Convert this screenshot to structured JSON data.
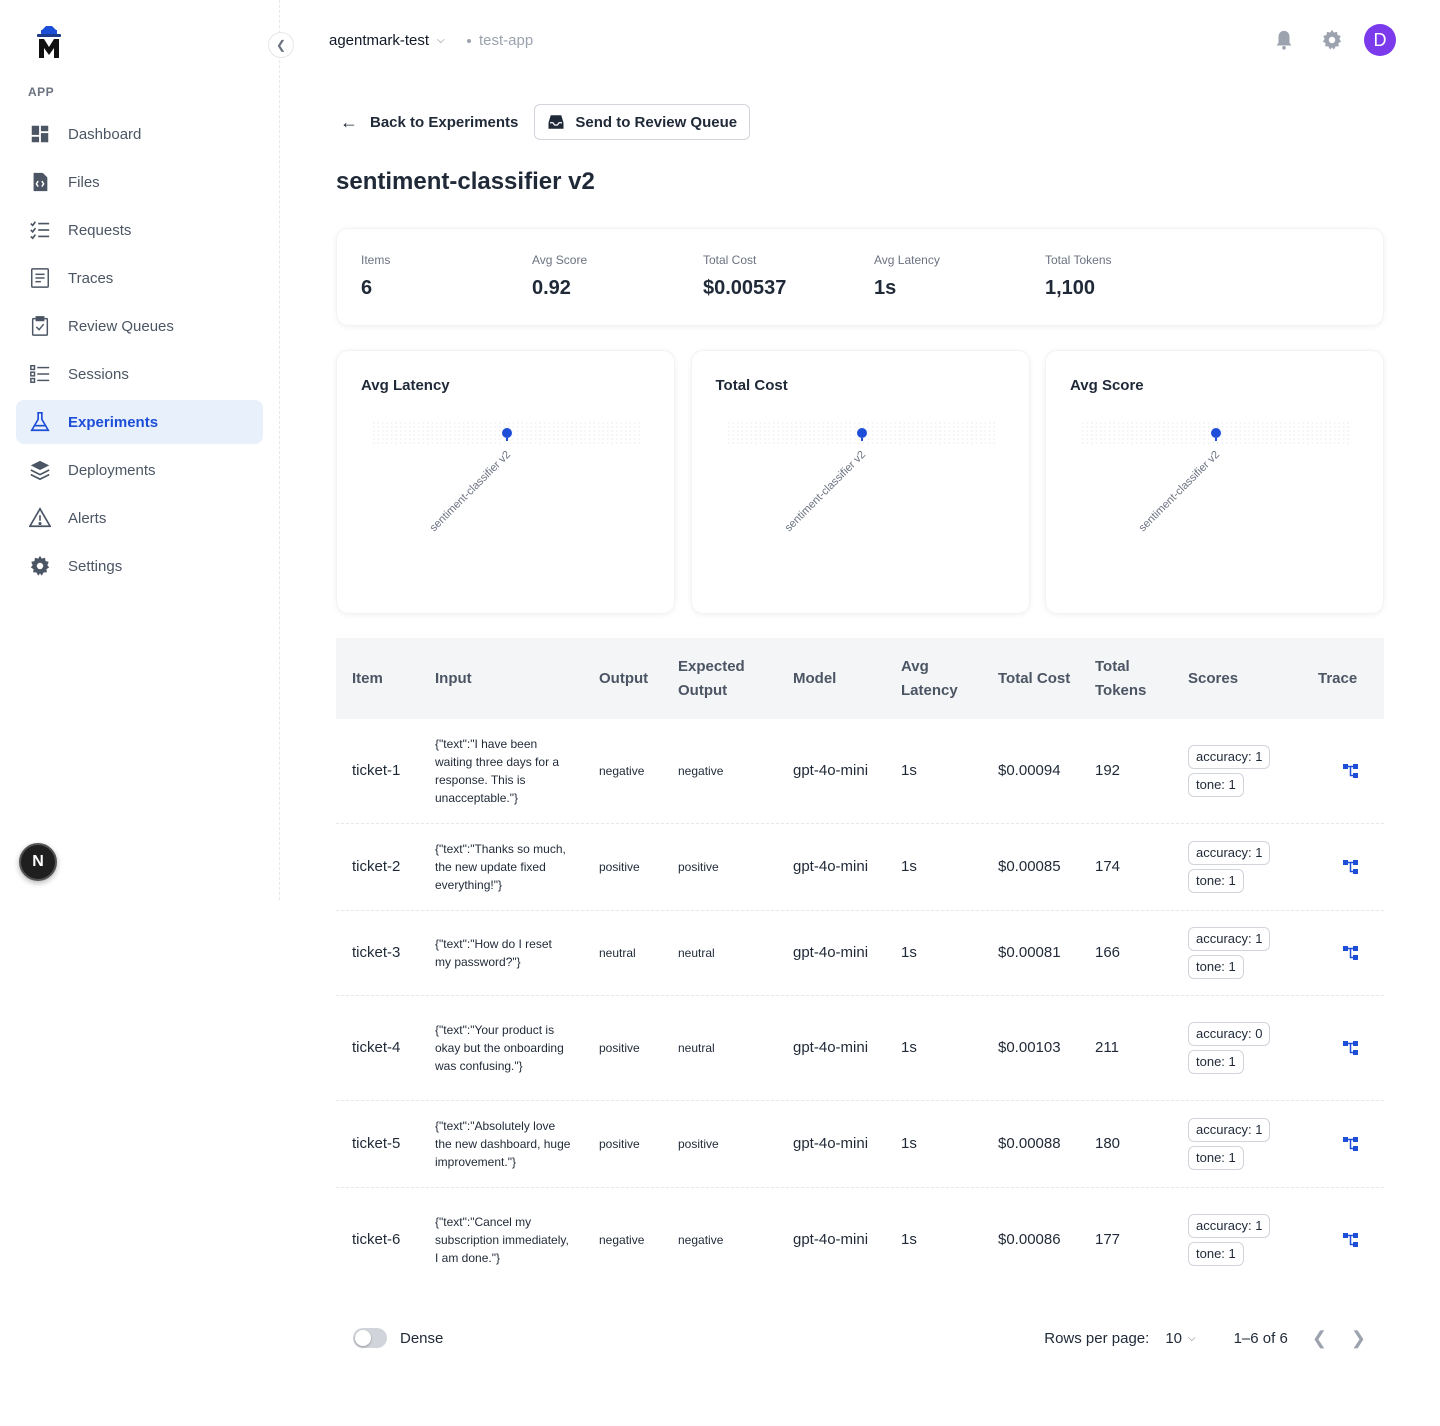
{
  "app": {
    "section_label": "APP",
    "org_name": "agentmark-test",
    "app_name": "test-app",
    "user_initial": "D",
    "avatar_color": "#7c3aed",
    "accent_color": "#1d4ed8"
  },
  "sidebar": {
    "items": [
      {
        "label": "Dashboard",
        "icon": "dashboard-icon",
        "active": false
      },
      {
        "label": "Files",
        "icon": "file-code-icon",
        "active": false
      },
      {
        "label": "Requests",
        "icon": "checklist-icon",
        "active": false
      },
      {
        "label": "Traces",
        "icon": "document-list-icon",
        "active": false
      },
      {
        "label": "Review Queues",
        "icon": "clipboard-check-icon",
        "active": false
      },
      {
        "label": "Sessions",
        "icon": "list-icon",
        "active": false
      },
      {
        "label": "Experiments",
        "icon": "flask-icon",
        "active": true
      },
      {
        "label": "Deployments",
        "icon": "layers-icon",
        "active": false
      },
      {
        "label": "Alerts",
        "icon": "warning-icon",
        "active": false
      },
      {
        "label": "Settings",
        "icon": "gear-icon",
        "active": false
      }
    ],
    "next_badge": "N"
  },
  "actions": {
    "back_label": "Back to Experiments",
    "review_label": "Send to Review Queue"
  },
  "page": {
    "title": "sentiment-classifier v2"
  },
  "stats": [
    {
      "label": "Items",
      "value": "6"
    },
    {
      "label": "Avg Score",
      "value": "0.92"
    },
    {
      "label": "Total Cost",
      "value": "$0.00537"
    },
    {
      "label": "Avg Latency",
      "value": "1s"
    },
    {
      "label": "Total Tokens",
      "value": "1,100"
    }
  ],
  "chart_data": [
    {
      "type": "scatter",
      "title": "Avg Latency",
      "categories": [
        "sentiment-classifier v2"
      ],
      "values": [
        1
      ],
      "grid": true
    },
    {
      "type": "scatter",
      "title": "Total Cost",
      "categories": [
        "sentiment-classifier v2"
      ],
      "values": [
        0.00537
      ],
      "grid": true
    },
    {
      "type": "scatter",
      "title": "Avg Score",
      "categories": [
        "sentiment-classifier v2"
      ],
      "values": [
        0.92
      ],
      "grid": true
    }
  ],
  "table": {
    "headers": [
      "Item",
      "Input",
      "Output",
      "Expected Output",
      "Model",
      "Avg Latency",
      "Total Cost",
      "Total Tokens",
      "Scores",
      "Trace"
    ],
    "rows": [
      {
        "item": "ticket-1",
        "input": "{\"text\":\"I have been waiting three days for a response. This is unacceptable.\"}",
        "output": "negative",
        "expected": "negative",
        "model": "gpt-4o-mini",
        "latency": "1s",
        "cost": "$0.00094",
        "tokens": "192",
        "score1": "accuracy: 1",
        "score2": "tone: 1"
      },
      {
        "item": "ticket-2",
        "input": "{\"text\":\"Thanks so much, the new update fixed everything!\"}",
        "output": "positive",
        "expected": "positive",
        "model": "gpt-4o-mini",
        "latency": "1s",
        "cost": "$0.00085",
        "tokens": "174",
        "score1": "accuracy: 1",
        "score2": "tone: 1"
      },
      {
        "item": "ticket-3",
        "input": "{\"text\":\"How do I reset my password?\"}",
        "output": "neutral",
        "expected": "neutral",
        "model": "gpt-4o-mini",
        "latency": "1s",
        "cost": "$0.00081",
        "tokens": "166",
        "score1": "accuracy: 1",
        "score2": "tone: 1"
      },
      {
        "item": "ticket-4",
        "input": "{\"text\":\"Your product is okay but the onboarding was confusing.\"}",
        "output": "positive",
        "expected": "neutral",
        "model": "gpt-4o-mini",
        "latency": "1s",
        "cost": "$0.00103",
        "tokens": "211",
        "score1": "accuracy: 0",
        "score2": "tone: 1"
      },
      {
        "item": "ticket-5",
        "input": "{\"text\":\"Absolutely love the new dashboard, huge improvement.\"}",
        "output": "positive",
        "expected": "positive",
        "model": "gpt-4o-mini",
        "latency": "1s",
        "cost": "$0.00088",
        "tokens": "180",
        "score1": "accuracy: 1",
        "score2": "tone: 1"
      },
      {
        "item": "ticket-6",
        "input": "{\"text\":\"Cancel my subscription immediately, I am done.\"}",
        "output": "negative",
        "expected": "negative",
        "model": "gpt-4o-mini",
        "latency": "1s",
        "cost": "$0.00086",
        "tokens": "177",
        "score1": "accuracy: 1",
        "score2": "tone: 1"
      }
    ]
  },
  "footer": {
    "dense_label": "Dense",
    "rows_per_page_label": "Rows per page:",
    "rows_per_page_value": "10",
    "range": "1–6 of 6"
  }
}
